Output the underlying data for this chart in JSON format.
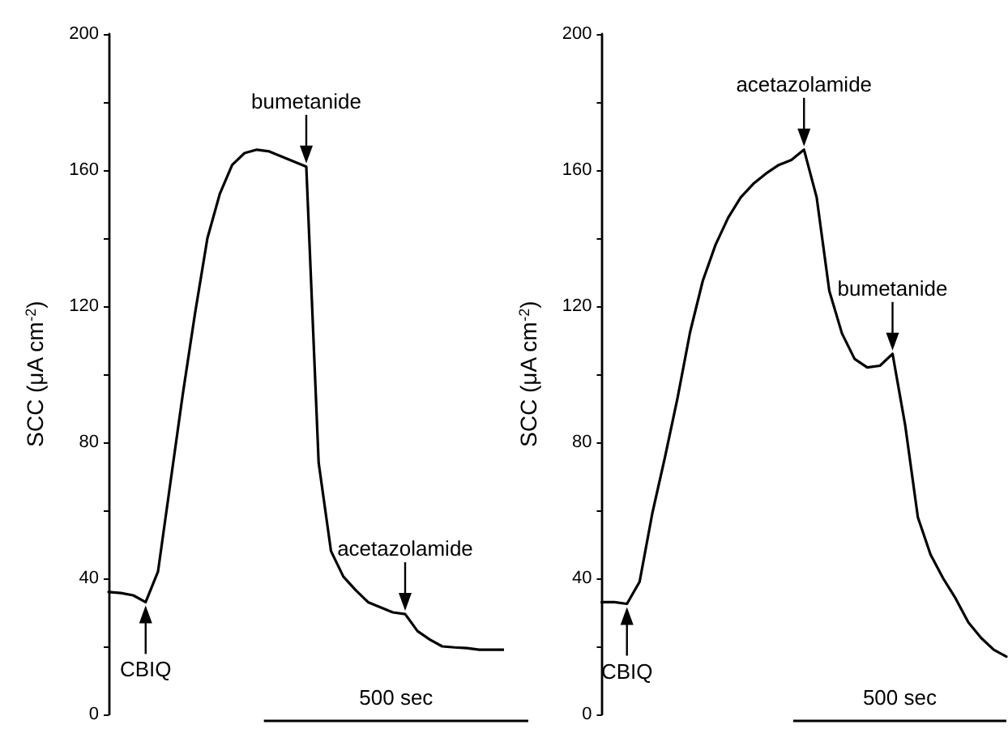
{
  "chart_data": [
    {
      "type": "line",
      "ylabel": "SCC (μA cm$^{-2}$)",
      "categories": [
        null,
        null,
        null,
        null,
        null,
        null,
        null,
        null,
        null,
        null,
        null,
        null,
        null,
        null,
        null,
        null,
        null,
        null,
        null,
        null,
        null,
        null,
        null,
        null,
        null,
        null,
        null,
        null,
        null,
        null,
        null,
        null,
        null
      ],
      "ylim": [
        0,
        200
      ],
      "yticks": [
        0,
        40,
        80,
        120,
        160,
        200
      ],
      "tick_labels": "y",
      "marker": "none",
      "line_style": "solid",
      "series": [
        {
          "color": "#000000",
          "values": [
            36,
            35.7,
            35,
            33,
            42,
            68,
            94,
            118,
            140,
            153,
            161.5,
            165,
            166,
            165.5,
            164,
            162.5,
            161,
            74,
            48,
            40.5,
            36.5,
            33,
            31.5,
            30,
            29.5,
            24.5,
            22,
            20,
            19.7,
            19.5,
            19,
            19,
            19
          ]
        }
      ],
      "annotations": [
        {
          "text": "CBIQ",
          "y": 33
        },
        {
          "text": "bumetanide",
          "y": 161
        },
        {
          "text": "acetazolamide",
          "y": 29.5
        },
        "500 sec"
      ]
    },
    {
      "type": "line",
      "ylabel": "SCC (μA cm$^{-2}$)",
      "categories": [
        null,
        null,
        null,
        null,
        null,
        null,
        null,
        null,
        null,
        null,
        null,
        null,
        null,
        null,
        null,
        null,
        null,
        null,
        null,
        null,
        null,
        null,
        null,
        null,
        null,
        null,
        null,
        null,
        null,
        null,
        null,
        null,
        null
      ],
      "ylim": [
        0,
        200
      ],
      "yticks": [
        0,
        40,
        80,
        120,
        160,
        200
      ],
      "tick_labels": "y",
      "marker": "none",
      "line_style": "solid",
      "series": [
        {
          "color": "#000000",
          "values": [
            33,
            33,
            32.5,
            39,
            59,
            75.5,
            93,
            112.5,
            127.5,
            138,
            146,
            152,
            156,
            159,
            161.5,
            163,
            166,
            152,
            124.5,
            112,
            104.5,
            102,
            102.5,
            106,
            85,
            58,
            47,
            40,
            34,
            27,
            22.5,
            19,
            17
          ]
        }
      ],
      "annotations": [
        {
          "text": "CBIQ",
          "y": 32.5
        },
        {
          "text": "acetazolamide",
          "y": 166
        },
        {
          "text": "bumetanide",
          "y": 106
        },
        "500 sec"
      ]
    }
  ]
}
